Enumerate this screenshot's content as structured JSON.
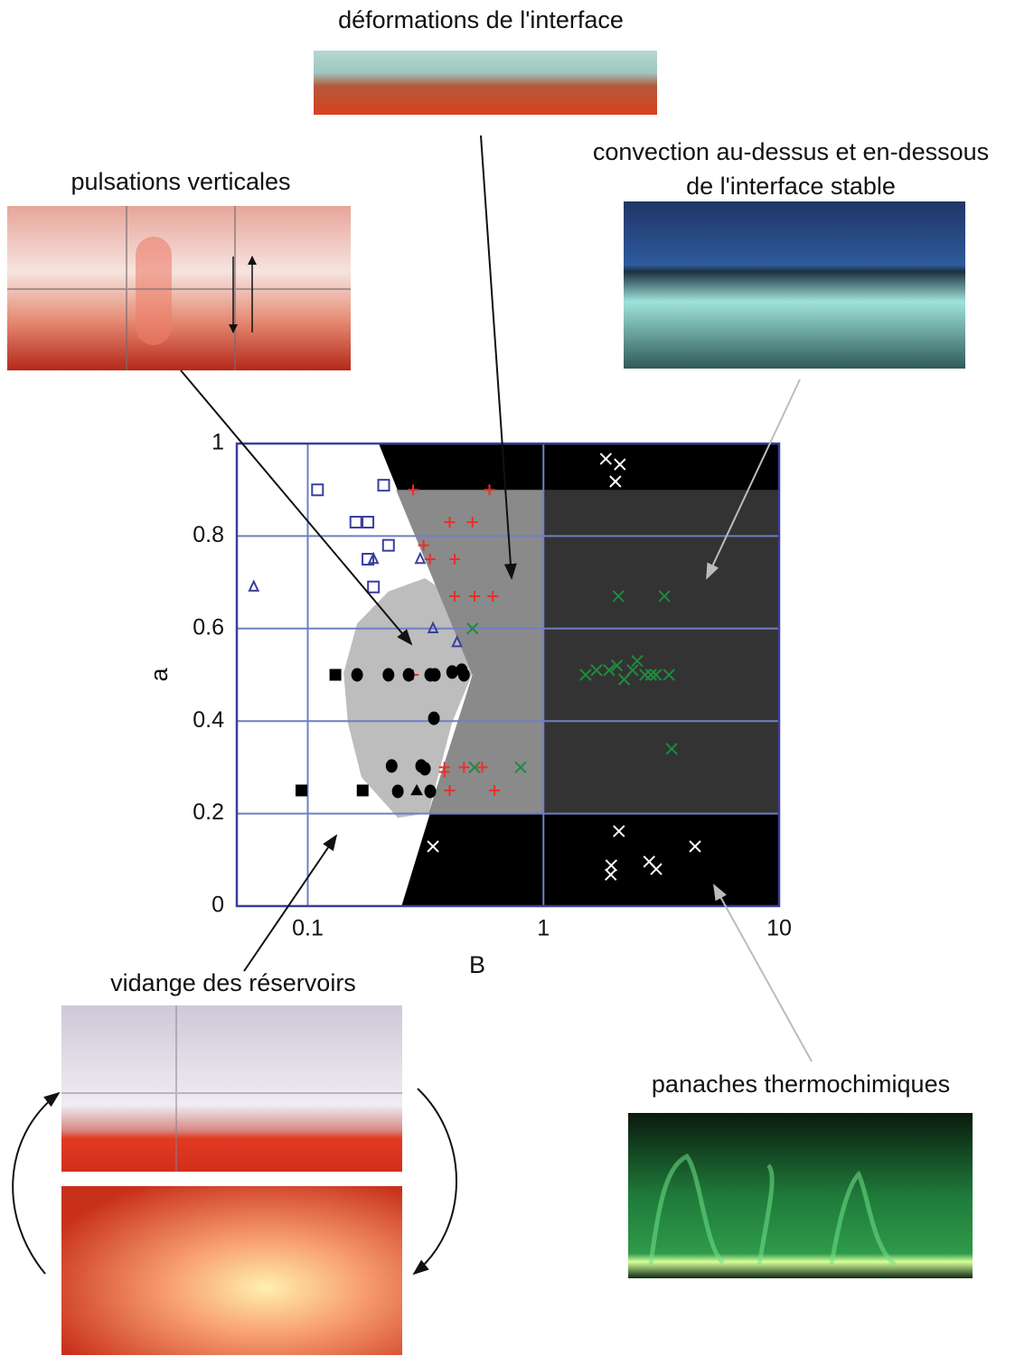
{
  "chart_data": {
    "type": "scatter",
    "x_label": "B",
    "y_label": "a",
    "xlim": [
      0.05,
      10
    ],
    "ylim": [
      0,
      1
    ],
    "xlog": true,
    "grid": true,
    "grid_color": "#6f7fc4",
    "axis_color": "#3a3f9a",
    "xticks": [
      0.1,
      1,
      10
    ],
    "yticks": [
      0,
      0.2,
      0.4,
      0.6,
      0.8,
      1
    ],
    "regions": [
      {
        "color": "#bdbdbd",
        "x": [
          0.314,
          0.409,
          0.5,
          0.409,
          0.325,
          0.241,
          0.169,
          0.148,
          0.142,
          0.162,
          0.22
        ],
        "values": [
          0.709,
          0.67,
          0.504,
          0.396,
          0.201,
          0.191,
          0.279,
          0.396,
          0.504,
          0.611,
          0.68
        ]
      },
      {
        "color": "#000000",
        "x": [
          0.2,
          10,
          10,
          0.25,
          0.5
        ],
        "values": [
          1,
          1,
          0,
          0,
          0.5
        ]
      },
      {
        "color": "#8a8a8a",
        "x": [
          0.237,
          1,
          1,
          0.325,
          0.5
        ],
        "values": [
          0.9,
          0.9,
          0.2,
          0.2,
          0.5
        ]
      },
      {
        "color": "#333333",
        "x": [
          1,
          10,
          10,
          1
        ],
        "values": [
          0.9,
          0.9,
          0.2,
          0.2
        ]
      }
    ],
    "series": [
      {
        "marker": "square",
        "color": "#3b3f9e",
        "x": [
          0.11,
          0.21,
          0.16,
          0.18,
          0.22,
          0.18,
          0.19
        ],
        "values": [
          0.9,
          0.91,
          0.83,
          0.83,
          0.78,
          0.75,
          0.69
        ]
      },
      {
        "marker": "triangle",
        "color": "#3b3f9e",
        "x": [
          0.059,
          0.19,
          0.3,
          0.34,
          0.43
        ],
        "values": [
          0.69,
          0.75,
          0.75,
          0.6,
          0.57
        ]
      },
      {
        "marker": "plus",
        "color": "#e8302a",
        "x": [
          0.28,
          0.59,
          0.31,
          0.33,
          0.4,
          0.5,
          0.42,
          0.42,
          0.51,
          0.61,
          0.28,
          0.38,
          0.38,
          0.46,
          0.55,
          0.4,
          0.62
        ],
        "values": [
          0.9,
          0.9,
          0.78,
          0.75,
          0.83,
          0.83,
          0.75,
          0.67,
          0.67,
          0.67,
          0.5,
          0.3,
          0.29,
          0.3,
          0.3,
          0.25,
          0.25
        ]
      },
      {
        "marker": "cross",
        "color": "#1e8a3e",
        "x": [
          0.5,
          0.51,
          0.8,
          2.08,
          3.26,
          1.51,
          1.68,
          1.9,
          2.05,
          2.2,
          2.39,
          2.5,
          2.7,
          2.86,
          3.0,
          3.41,
          3.5
        ],
        "values": [
          0.6,
          0.3,
          0.3,
          0.67,
          0.67,
          0.5,
          0.51,
          0.51,
          0.52,
          0.49,
          0.51,
          0.53,
          0.5,
          0.5,
          0.5,
          0.5,
          0.34
        ]
      },
      {
        "marker": "cross",
        "color": "#ffffff",
        "x": [
          1.84,
          2.11,
          2.02,
          2.09,
          1.94,
          1.93,
          2.81,
          3.01,
          4.4,
          0.34
        ],
        "values": [
          0.967,
          0.955,
          0.918,
          0.162,
          0.088,
          0.068,
          0.096,
          0.08,
          0.129,
          0.129
        ]
      },
      {
        "marker": "dot",
        "color": "#000000",
        "x": [
          0.162,
          0.22,
          0.268,
          0.331,
          0.346,
          0.41,
          0.45,
          0.46,
          0.343,
          0.227,
          0.303,
          0.314,
          0.241,
          0.331
        ],
        "values": [
          0.5,
          0.5,
          0.5,
          0.5,
          0.5,
          0.506,
          0.51,
          0.5,
          0.406,
          0.303,
          0.303,
          0.297,
          0.248,
          0.248
        ]
      },
      {
        "marker": "filled-square",
        "color": "#000000",
        "x": [
          0.131,
          0.094,
          0.171
        ],
        "values": [
          0.5,
          0.25,
          0.25
        ]
      },
      {
        "marker": "filled-triangle",
        "color": "#000000",
        "x": [
          0.29
        ],
        "values": [
          0.25
        ]
      }
    ]
  },
  "annotations": [
    {
      "lines": [
        "déformations de l'interface"
      ]
    },
    {
      "lines": [
        "pulsations verticales"
      ]
    },
    {
      "lines": [
        "convection au-dessus et en-dessous",
        "de l'interface stable"
      ]
    },
    {
      "lines": [
        "vidange des réservoirs"
      ]
    },
    {
      "lines": [
        "panaches thermochimiques"
      ]
    }
  ]
}
